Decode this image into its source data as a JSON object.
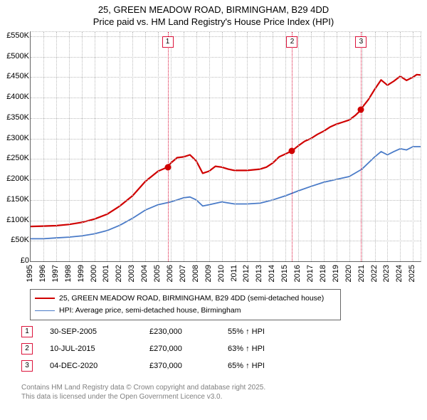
{
  "title": {
    "line1": "25, GREEN MEADOW ROAD, BIRMINGHAM, B29 4DD",
    "line2": "Price paid vs. HM Land Registry's House Price Index (HPI)",
    "fontsize": 13
  },
  "chart": {
    "type": "line",
    "background_color": "#ffffff",
    "grid_color": "#bbbbbb",
    "axis_color": "#666666",
    "yaxis": {
      "min": 0,
      "max": 560000,
      "ticks": [
        0,
        50000,
        100000,
        150000,
        200000,
        250000,
        300000,
        350000,
        400000,
        450000,
        500000,
        550000
      ],
      "labels": [
        "£0",
        "£50K",
        "£100K",
        "£150K",
        "£200K",
        "£250K",
        "£300K",
        "£350K",
        "£400K",
        "£450K",
        "£500K",
        "£550K"
      ],
      "label_fontsize": 11,
      "label_color": "#000000"
    },
    "xaxis": {
      "start_year": 1995,
      "end_year": 2025.6,
      "ticks": [
        1995,
        1996,
        1997,
        1998,
        1999,
        2000,
        2001,
        2002,
        2003,
        2004,
        2005,
        2006,
        2007,
        2008,
        2009,
        2010,
        2011,
        2012,
        2013,
        2014,
        2015,
        2016,
        2017,
        2018,
        2019,
        2020,
        2021,
        2022,
        2023,
        2024,
        2025
      ],
      "label_fontsize": 11,
      "label_color": "#000000"
    },
    "no_data_lines": [
      2005.75,
      2015.52,
      2020.93
    ],
    "no_data_line_color": "#dc143c",
    "series": [
      {
        "name": "25, GREEN MEADOW ROAD, BIRMINGHAM, B29 4DD (semi-detached house)",
        "color": "#d00000",
        "line_width": 2.2,
        "data": [
          [
            1995,
            85000
          ],
          [
            1996,
            86000
          ],
          [
            1997,
            87000
          ],
          [
            1998,
            90000
          ],
          [
            1999,
            95000
          ],
          [
            2000,
            103000
          ],
          [
            2001,
            115000
          ],
          [
            2002,
            135000
          ],
          [
            2003,
            160000
          ],
          [
            2004,
            195000
          ],
          [
            2005,
            220000
          ],
          [
            2005.75,
            230000
          ],
          [
            2006,
            240000
          ],
          [
            2006.5,
            253000
          ],
          [
            2007,
            255000
          ],
          [
            2007.5,
            260000
          ],
          [
            2008,
            245000
          ],
          [
            2008.5,
            215000
          ],
          [
            2009,
            220000
          ],
          [
            2009.5,
            232000
          ],
          [
            2010,
            230000
          ],
          [
            2010.5,
            225000
          ],
          [
            2011,
            222000
          ],
          [
            2012,
            222000
          ],
          [
            2013,
            225000
          ],
          [
            2013.5,
            230000
          ],
          [
            2014,
            240000
          ],
          [
            2014.5,
            255000
          ],
          [
            2015,
            262000
          ],
          [
            2015.52,
            270000
          ],
          [
            2016,
            282000
          ],
          [
            2016.5,
            293000
          ],
          [
            2017,
            300000
          ],
          [
            2017.5,
            310000
          ],
          [
            2018,
            318000
          ],
          [
            2018.5,
            328000
          ],
          [
            2019,
            335000
          ],
          [
            2019.5,
            340000
          ],
          [
            2020,
            345000
          ],
          [
            2020.5,
            357000
          ],
          [
            2020.93,
            370000
          ],
          [
            2021,
            375000
          ],
          [
            2021.5,
            395000
          ],
          [
            2022,
            420000
          ],
          [
            2022.5,
            443000
          ],
          [
            2023,
            430000
          ],
          [
            2023.5,
            440000
          ],
          [
            2024,
            452000
          ],
          [
            2024.5,
            442000
          ],
          [
            2025,
            450000
          ],
          [
            2025.3,
            456000
          ],
          [
            2025.6,
            455000
          ]
        ]
      },
      {
        "name": "HPI: Average price, semi-detached house, Birmingham",
        "color": "#4a7bc8",
        "line_width": 1.8,
        "data": [
          [
            1995,
            55000
          ],
          [
            1996,
            55000
          ],
          [
            1997,
            57000
          ],
          [
            1998,
            59000
          ],
          [
            1999,
            62000
          ],
          [
            2000,
            67000
          ],
          [
            2001,
            75000
          ],
          [
            2002,
            88000
          ],
          [
            2003,
            105000
          ],
          [
            2004,
            125000
          ],
          [
            2005,
            138000
          ],
          [
            2006,
            145000
          ],
          [
            2006.5,
            150000
          ],
          [
            2007,
            155000
          ],
          [
            2007.5,
            157000
          ],
          [
            2008,
            150000
          ],
          [
            2008.5,
            135000
          ],
          [
            2009,
            138000
          ],
          [
            2010,
            145000
          ],
          [
            2011,
            140000
          ],
          [
            2012,
            140000
          ],
          [
            2013,
            142000
          ],
          [
            2014,
            150000
          ],
          [
            2015,
            160000
          ],
          [
            2016,
            172000
          ],
          [
            2017,
            183000
          ],
          [
            2018,
            193000
          ],
          [
            2019,
            200000
          ],
          [
            2020,
            207000
          ],
          [
            2021,
            225000
          ],
          [
            2022,
            255000
          ],
          [
            2022.5,
            268000
          ],
          [
            2023,
            260000
          ],
          [
            2023.5,
            268000
          ],
          [
            2024,
            275000
          ],
          [
            2024.5,
            272000
          ],
          [
            2025,
            280000
          ],
          [
            2025.6,
            280000
          ]
        ]
      }
    ],
    "event_markers": [
      {
        "id": "1",
        "year": 2005.75,
        "value": 230000
      },
      {
        "id": "2",
        "year": 2015.52,
        "value": 270000
      },
      {
        "id": "3",
        "year": 2020.93,
        "value": 370000
      }
    ],
    "marker_box_border": "#dc143c",
    "marker_box_bg": "#ffffff"
  },
  "legend": {
    "items": [
      {
        "color": "#d00000",
        "width": 2.2,
        "label": "25, GREEN MEADOW ROAD, BIRMINGHAM, B29 4DD (semi-detached house)"
      },
      {
        "color": "#4a7bc8",
        "width": 1.8,
        "label": "HPI: Average price, semi-detached house, Birmingham"
      }
    ],
    "fontsize": 10.5,
    "border_color": "#666666"
  },
  "data_table": {
    "rows": [
      {
        "id": "1",
        "date": "30-SEP-2005",
        "price": "£230,000",
        "pct": "55% ↑ HPI"
      },
      {
        "id": "2",
        "date": "10-JUL-2015",
        "price": "£270,000",
        "pct": "63% ↑ HPI"
      },
      {
        "id": "3",
        "date": "04-DEC-2020",
        "price": "£370,000",
        "pct": "65% ↑ HPI"
      }
    ],
    "fontsize": 11
  },
  "attribution": {
    "line1": "Contains HM Land Registry data © Crown copyright and database right 2025.",
    "line2": "This data is licensed under the Open Government Licence v3.0.",
    "color": "#808080",
    "fontsize": 10
  }
}
